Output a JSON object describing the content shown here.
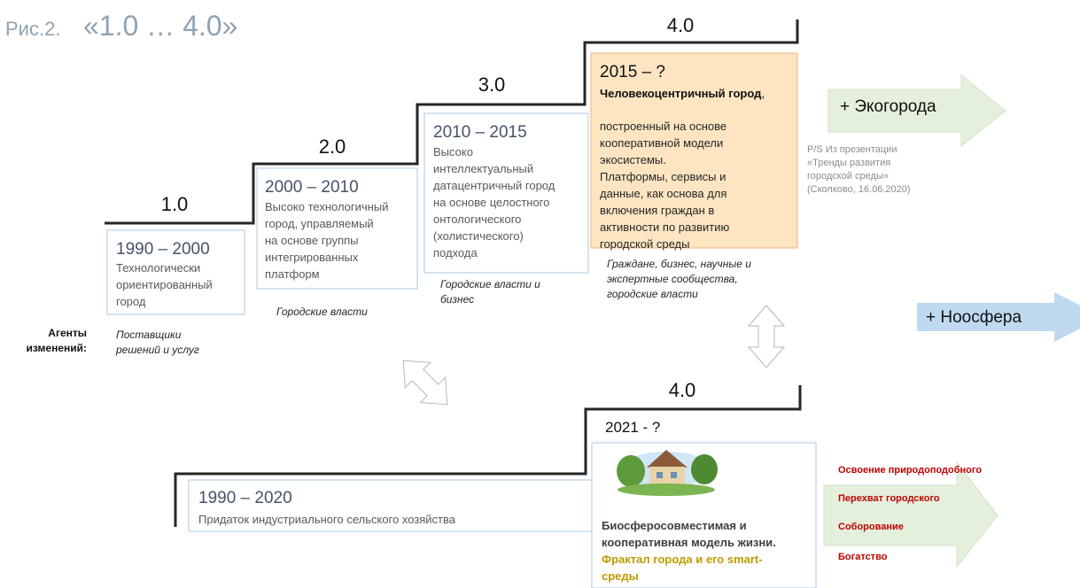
{
  "title": {
    "prefix": "Рис.2.",
    "main": "«1.0 … 4.0»"
  },
  "top_stage": {
    "levels": [
      "1.0",
      "2.0",
      "3.0",
      "4.0"
    ],
    "stages": [
      {
        "period": "1990 – 2000",
        "lines": [
          "Технологически",
          "ориентированный",
          "город"
        ],
        "agents": [
          "Поставщики",
          "решений и услуг"
        ]
      },
      {
        "period": "2000 – 2010",
        "lines": [
          "Высоко технологичный",
          "город, управляемый",
          "на основе группы",
          "интегрированных",
          "платформ"
        ],
        "agents": [
          "Городские власти"
        ]
      },
      {
        "period": "2010 – 2015",
        "lines": [
          "Высоко",
          "интеллектуальный",
          "датацентричный город",
          "на основе целостного",
          "онтологического",
          "(холистического)",
          "подхода"
        ],
        "agents": [
          "Городские власти и",
          "бизнес"
        ]
      },
      {
        "period": "2015 – ?",
        "lead": {
          "bold": "Человекоцентричный город",
          "rest": ","
        },
        "lines": [
          "построенный на основе",
          "кооперативной модели",
          "экосистемы.",
          "Платформы, сервисы и",
          "данные, как основа для",
          "включения граждан в",
          "активности по развитию",
          "городской среды"
        ],
        "agents": [
          "Граждане, бизнес, научные и",
          "экспертные сообщества,",
          "городские власти"
        ]
      }
    ]
  },
  "agents_label": [
    "Агенты",
    "изменений:"
  ],
  "note": [
    "P/S Из презентации",
    "«Тренды развития",
    "городской среды»",
    "(Сколково, 16.06.2020)"
  ],
  "arrows": {
    "eco": "+ Экогорода",
    "noosphere": "+ Ноосфера"
  },
  "bottom_stage": {
    "level": "4.0",
    "past": {
      "period": "1990 – 2020",
      "text": "Придаток индустриального сельского хозяйства"
    },
    "future": {
      "period": "2021 - ?",
      "lines": [
        "Биосферосовместимая и",
        "кооперативная модель жизни."
      ],
      "highlight": [
        "Фрактал города и его smart-",
        "среды"
      ]
    }
  },
  "outcomes": [
    "Освоение природоподобного",
    "Перехват городского",
    "Соборование",
    "Богатство"
  ]
}
